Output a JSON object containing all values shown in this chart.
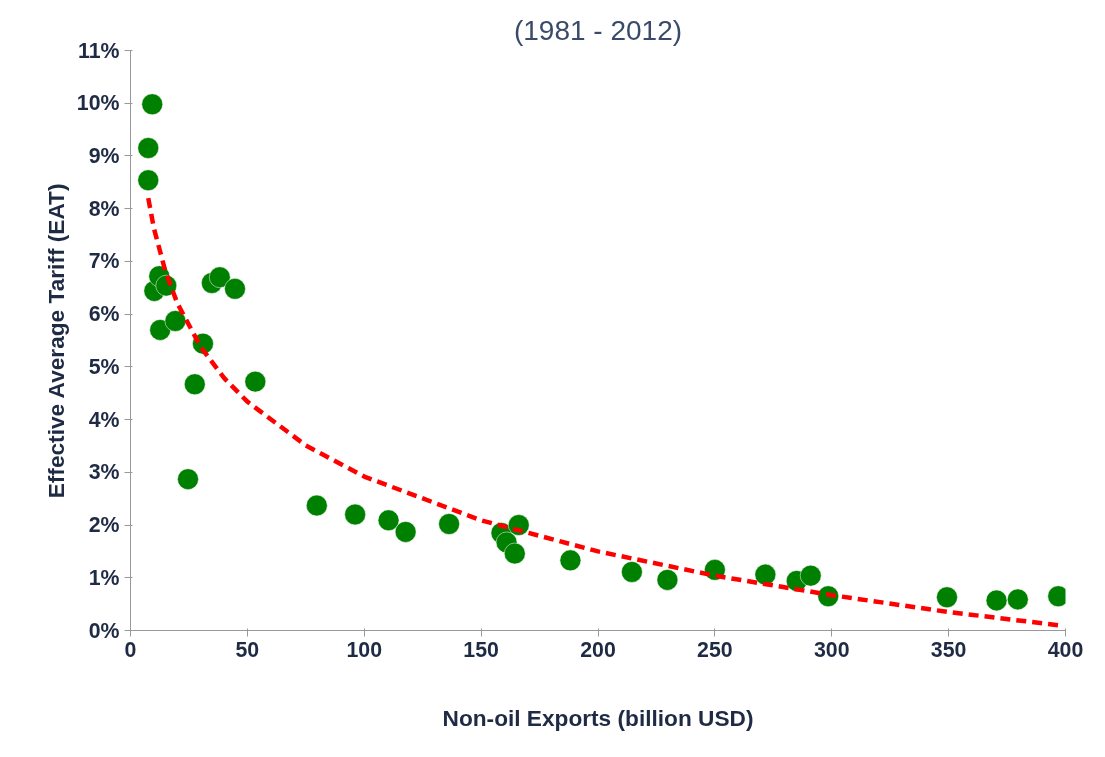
{
  "chart_data": {
    "type": "scatter",
    "title": "(1981 - 2012)",
    "xlabel": "Non-oil Exports (billion USD)",
    "ylabel": "Effective Average Tariff (EAT)",
    "xlim": [
      0,
      400
    ],
    "xticks": [
      0,
      50,
      100,
      150,
      200,
      250,
      300,
      350,
      400
    ],
    "ylim": [
      0,
      11
    ],
    "yticks": [
      {
        "value": 0,
        "label": "0%"
      },
      {
        "value": 1,
        "label": "1%"
      },
      {
        "value": 2,
        "label": "2%"
      },
      {
        "value": 3,
        "label": "3%"
      },
      {
        "value": 4,
        "label": "4%"
      },
      {
        "value": 5,
        "label": "5%"
      },
      {
        "value": 6,
        "label": "6%"
      },
      {
        "value": 7,
        "label": "7%"
      },
      {
        "value": 8,
        "label": "8%"
      },
      {
        "value": 9,
        "label": "9%"
      },
      {
        "value": 10,
        "label": "10%"
      },
      {
        "value": 11,
        "label": "11%"
      }
    ],
    "grid": false,
    "series": [
      {
        "color": "#008000",
        "marker": "circle",
        "x": [
          7.6,
          7.6,
          9.3,
          10.2,
          12.3,
          15.3,
          12.7,
          19.2,
          31,
          27.5,
          24.6,
          34.8,
          38.2,
          44.7,
          53.4,
          79.7,
          96.1,
          110.4,
          117.7,
          136.3,
          158.7,
          160.9,
          164.4,
          166.1,
          188.2,
          214.5,
          229.7,
          250,
          271.6,
          285,
          291,
          298.5,
          349.3,
          370.5,
          379.6,
          396.9
        ],
        "values": [
          8.54,
          9.15,
          9.98,
          6.44,
          6.72,
          6.54,
          5.7,
          5.87,
          5.44,
          4.67,
          2.87,
          6.59,
          6.7,
          6.48,
          4.72,
          2.37,
          2.2,
          2.09,
          1.87,
          2.02,
          1.85,
          1.67,
          1.46,
          2.0,
          1.33,
          1.11,
          0.96,
          1.15,
          1.06,
          0.94,
          1.04,
          0.65,
          0.63,
          0.57,
          0.59,
          0.65
        ]
      },
      {
        "type": "line",
        "color": "#ff0000",
        "line_style": "dashed",
        "marker": "none",
        "x": [
          7.6,
          10,
          15,
          20,
          30,
          40,
          50,
          75,
          100,
          150,
          200,
          250,
          300,
          350,
          397
        ],
        "values": [
          8.2,
          7.63,
          6.8,
          6.21,
          5.38,
          4.79,
          4.34,
          3.51,
          2.92,
          2.09,
          1.5,
          1.04,
          0.67,
          0.35,
          0.1
        ]
      }
    ]
  }
}
